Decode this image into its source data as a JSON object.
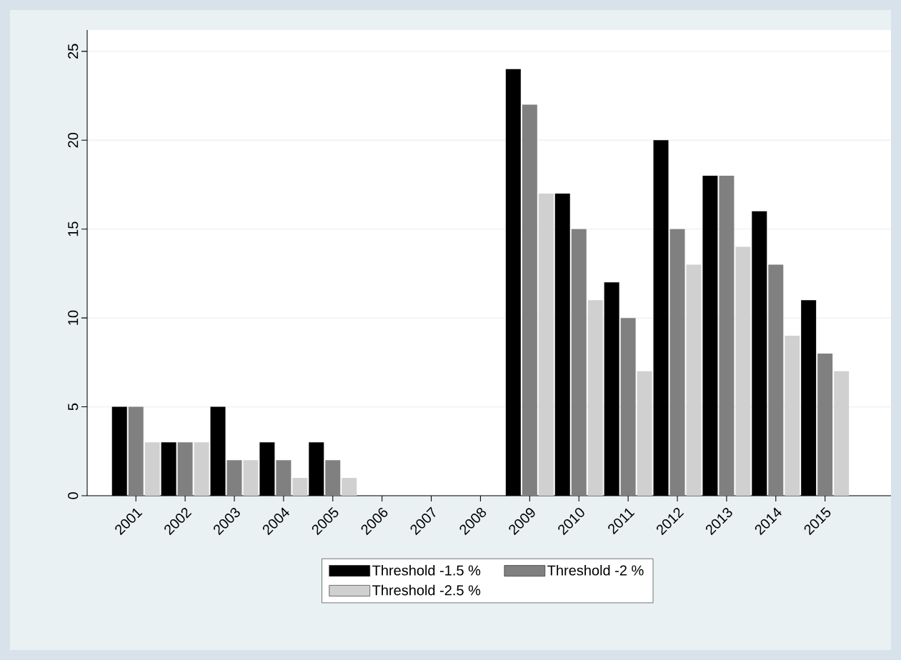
{
  "chart_data": {
    "type": "bar",
    "categories": [
      "2001",
      "2002",
      "2003",
      "2004",
      "2005",
      "2006",
      "2007",
      "2008",
      "2009",
      "2010",
      "2011",
      "2012",
      "2013",
      "2014",
      "2015"
    ],
    "series": [
      {
        "name": "Threshold -1.5 %",
        "color": "#000000",
        "values": [
          5,
          3,
          5,
          3,
          3,
          null,
          null,
          null,
          24,
          17,
          12,
          20,
          18,
          16,
          11
        ]
      },
      {
        "name": "Threshold -2 %",
        "color": "#808080",
        "values": [
          5,
          3,
          2,
          2,
          2,
          null,
          null,
          null,
          22,
          15,
          10,
          15,
          18,
          13,
          8
        ]
      },
      {
        "name": "Threshold -2.5 %",
        "color": "#d0d0d0",
        "values": [
          3,
          3,
          2,
          1,
          1,
          null,
          null,
          null,
          17,
          11,
          7,
          13,
          14,
          9,
          7
        ]
      }
    ],
    "ylim": [
      0,
      26.2
    ],
    "yticks": [
      0,
      5,
      10,
      15,
      20,
      25
    ],
    "grid": "y",
    "legend": "bottom"
  }
}
